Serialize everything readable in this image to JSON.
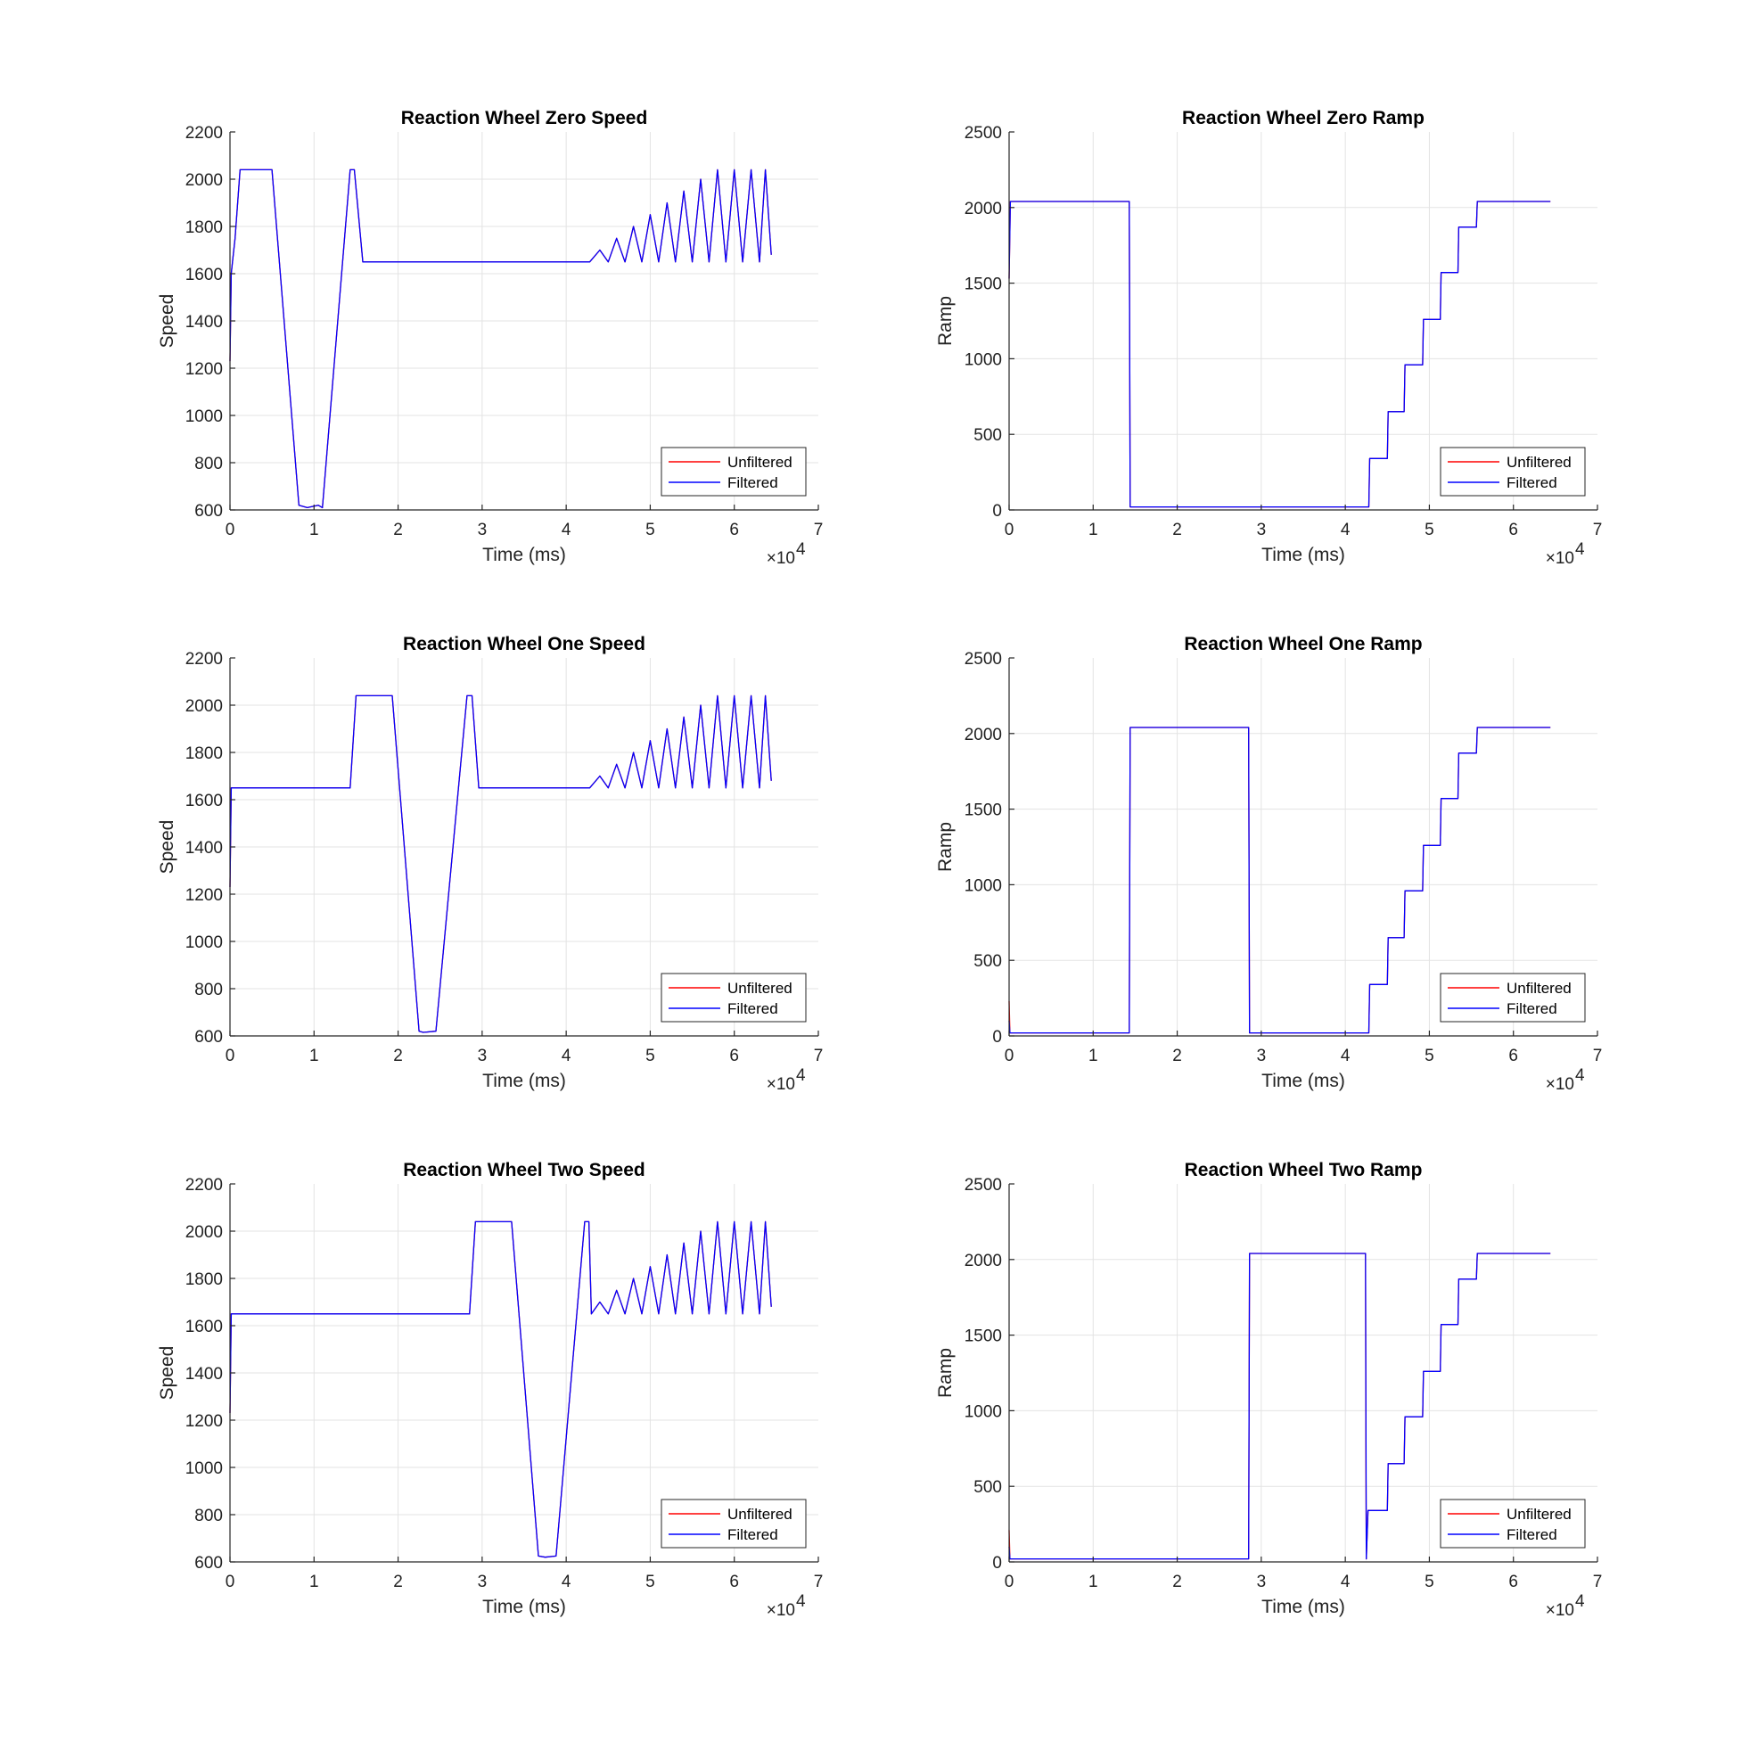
{
  "chart_data": [
    {
      "type": "line",
      "title": "Reaction Wheel Zero Speed",
      "xlabel": "Time (ms)",
      "ylabel": "Speed",
      "xlim": [
        0,
        70000
      ],
      "ylim": [
        600,
        2200
      ],
      "xticks": [
        0,
        10000,
        20000,
        30000,
        40000,
        50000,
        60000,
        70000
      ],
      "xtick_labels": [
        "0",
        "1",
        "2",
        "3",
        "4",
        "5",
        "6",
        "7"
      ],
      "x_exponent_base": "×10",
      "x_exponent_power": "4",
      "yticks": [
        600,
        800,
        1000,
        1200,
        1400,
        1600,
        1800,
        2000,
        2200
      ],
      "ytick_labels": [
        "600",
        "800",
        "1000",
        "1200",
        "1400",
        "1600",
        "1800",
        "2000",
        "2200"
      ],
      "grid": true,
      "legend": "bottom-right",
      "series": [
        {
          "name": "Unfiltered",
          "color": "#ff0000",
          "x": [
            0,
            150,
            300,
            600,
            1200,
            5000,
            8200,
            9200,
            10500,
            11000,
            14300,
            14800,
            15800,
            42800,
            44000,
            45000,
            46000,
            47000,
            48000,
            49000,
            50000,
            51000,
            52000,
            53000,
            54000,
            55000,
            56000,
            57000,
            58000,
            59000,
            60000,
            61000,
            62000,
            63000,
            63700,
            64400
          ],
          "y": [
            1230,
            1600,
            1650,
            1750,
            2040,
            2040,
            620,
            610,
            620,
            610,
            2040,
            2040,
            1650,
            1650,
            1700,
            1650,
            1750,
            1650,
            1800,
            1650,
            1850,
            1650,
            1900,
            1650,
            1950,
            1650,
            2000,
            1650,
            2040,
            1650,
            2040,
            1650,
            2040,
            1650,
            2040,
            1680
          ]
        },
        {
          "name": "Filtered",
          "color": "#0000ff",
          "x": [
            0,
            150,
            300,
            600,
            1200,
            5000,
            8200,
            9200,
            10500,
            11000,
            14300,
            14800,
            15800,
            42800,
            44000,
            45000,
            46000,
            47000,
            48000,
            49000,
            50000,
            51000,
            52000,
            53000,
            54000,
            55000,
            56000,
            57000,
            58000,
            59000,
            60000,
            61000,
            62000,
            63000,
            63700,
            64400
          ],
          "y": [
            1230,
            1600,
            1650,
            1750,
            2040,
            2040,
            620,
            610,
            620,
            610,
            2040,
            2040,
            1650,
            1650,
            1700,
            1650,
            1750,
            1650,
            1800,
            1650,
            1850,
            1650,
            1900,
            1650,
            1950,
            1650,
            2000,
            1650,
            2040,
            1650,
            2040,
            1650,
            2040,
            1650,
            2040,
            1680
          ]
        }
      ]
    },
    {
      "type": "line",
      "title": "Reaction Wheel Zero Ramp",
      "xlabel": "Time (ms)",
      "ylabel": "Ramp",
      "xlim": [
        0,
        70000
      ],
      "ylim": [
        0,
        2500
      ],
      "xticks": [
        0,
        10000,
        20000,
        30000,
        40000,
        50000,
        60000,
        70000
      ],
      "xtick_labels": [
        "0",
        "1",
        "2",
        "3",
        "4",
        "5",
        "6",
        "7"
      ],
      "x_exponent_base": "×10",
      "x_exponent_power": "4",
      "yticks": [
        0,
        500,
        1000,
        1500,
        2000,
        2500
      ],
      "ytick_labels": [
        "0",
        "500",
        "1000",
        "1500",
        "2000",
        "2500"
      ],
      "grid": true,
      "legend": "bottom-right",
      "series": [
        {
          "name": "Unfiltered",
          "color": "#ff0000",
          "x": [
            0,
            150,
            300,
            14300,
            14400,
            42800,
            42900,
            45000,
            45100,
            47000,
            47100,
            49200,
            49300,
            51300,
            51400,
            53400,
            53500,
            55600,
            55700,
            64400
          ],
          "y": [
            1530,
            2040,
            2040,
            2040,
            20,
            20,
            340,
            340,
            650,
            650,
            960,
            960,
            1260,
            1260,
            1570,
            1570,
            1870,
            1870,
            2040,
            2040
          ]
        },
        {
          "name": "Filtered",
          "color": "#0000ff",
          "x": [
            0,
            150,
            300,
            14300,
            14400,
            42800,
            42900,
            45000,
            45100,
            47000,
            47100,
            49200,
            49300,
            51300,
            51400,
            53400,
            53500,
            55600,
            55700,
            64400
          ],
          "y": [
            1530,
            2040,
            2040,
            2040,
            20,
            20,
            340,
            340,
            650,
            650,
            960,
            960,
            1260,
            1260,
            1570,
            1570,
            1870,
            1870,
            2040,
            2040
          ]
        }
      ]
    },
    {
      "type": "line",
      "title": "Reaction Wheel One Speed",
      "xlabel": "Time (ms)",
      "ylabel": "Speed",
      "xlim": [
        0,
        70000
      ],
      "ylim": [
        600,
        2200
      ],
      "xticks": [
        0,
        10000,
        20000,
        30000,
        40000,
        50000,
        60000,
        70000
      ],
      "xtick_labels": [
        "0",
        "1",
        "2",
        "3",
        "4",
        "5",
        "6",
        "7"
      ],
      "x_exponent_base": "×10",
      "x_exponent_power": "4",
      "yticks": [
        600,
        800,
        1000,
        1200,
        1400,
        1600,
        1800,
        2000,
        2200
      ],
      "ytick_labels": [
        "600",
        "800",
        "1000",
        "1200",
        "1400",
        "1600",
        "1800",
        "2000",
        "2200"
      ],
      "grid": true,
      "legend": "bottom-right",
      "series": [
        {
          "name": "Unfiltered",
          "color": "#ff0000",
          "x": [
            0,
            150,
            300,
            14300,
            15000,
            19300,
            22500,
            23000,
            24500,
            28200,
            28800,
            29600,
            42800,
            44000,
            45000,
            46000,
            47000,
            48000,
            49000,
            50000,
            51000,
            52000,
            53000,
            54000,
            55000,
            56000,
            57000,
            58000,
            59000,
            60000,
            61000,
            62000,
            63000,
            63700,
            64400
          ],
          "y": [
            1230,
            1650,
            1650,
            1650,
            2040,
            2040,
            620,
            615,
            620,
            2040,
            2040,
            1650,
            1650,
            1700,
            1650,
            1750,
            1650,
            1800,
            1650,
            1850,
            1650,
            1900,
            1650,
            1950,
            1650,
            2000,
            1650,
            2040,
            1650,
            2040,
            1650,
            2040,
            1650,
            2040,
            1680
          ]
        },
        {
          "name": "Filtered",
          "color": "#0000ff",
          "x": [
            0,
            150,
            300,
            14300,
            15000,
            19300,
            22500,
            23000,
            24500,
            28200,
            28800,
            29600,
            42800,
            44000,
            45000,
            46000,
            47000,
            48000,
            49000,
            50000,
            51000,
            52000,
            53000,
            54000,
            55000,
            56000,
            57000,
            58000,
            59000,
            60000,
            61000,
            62000,
            63000,
            63700,
            64400
          ],
          "y": [
            1230,
            1650,
            1650,
            1650,
            2040,
            2040,
            620,
            615,
            620,
            2040,
            2040,
            1650,
            1650,
            1700,
            1650,
            1750,
            1650,
            1800,
            1650,
            1850,
            1650,
            1900,
            1650,
            1950,
            1650,
            2000,
            1650,
            2040,
            1650,
            2040,
            1650,
            2040,
            1650,
            2040,
            1680
          ]
        }
      ]
    },
    {
      "type": "line",
      "title": "Reaction Wheel One Ramp",
      "xlabel": "Time (ms)",
      "ylabel": "Ramp",
      "xlim": [
        0,
        70000
      ],
      "ylim": [
        0,
        2500
      ],
      "xticks": [
        0,
        10000,
        20000,
        30000,
        40000,
        50000,
        60000,
        70000
      ],
      "xtick_labels": [
        "0",
        "1",
        "2",
        "3",
        "4",
        "5",
        "6",
        "7"
      ],
      "x_exponent_base": "×10",
      "x_exponent_power": "4",
      "yticks": [
        0,
        500,
        1000,
        1500,
        2000,
        2500
      ],
      "ytick_labels": [
        "0",
        "500",
        "1000",
        "1500",
        "2000",
        "2500"
      ],
      "grid": true,
      "legend": "bottom-right",
      "series": [
        {
          "name": "Unfiltered",
          "color": "#ff0000",
          "x": [
            0,
            100,
            200,
            14300,
            14400,
            28500,
            28600,
            42800,
            42900,
            45000,
            45100,
            47000,
            47100,
            49200,
            49300,
            51300,
            51400,
            53400,
            53500,
            55600,
            55700,
            64400
          ],
          "y": [
            230,
            20,
            20,
            20,
            2040,
            2040,
            20,
            20,
            340,
            340,
            650,
            650,
            960,
            960,
            1260,
            1260,
            1570,
            1570,
            1870,
            1870,
            2040,
            2040
          ]
        },
        {
          "name": "Filtered",
          "color": "#0000ff",
          "x": [
            0,
            100,
            200,
            14300,
            14400,
            28500,
            28600,
            42800,
            42900,
            45000,
            45100,
            47000,
            47100,
            49200,
            49300,
            51300,
            51400,
            53400,
            53500,
            55600,
            55700,
            64400
          ],
          "y": [
            100,
            20,
            20,
            20,
            2040,
            2040,
            20,
            20,
            340,
            340,
            650,
            650,
            960,
            960,
            1260,
            1260,
            1570,
            1570,
            1870,
            1870,
            2040,
            2040
          ]
        }
      ]
    },
    {
      "type": "line",
      "title": "Reaction Wheel Two Speed",
      "xlabel": "Time (ms)",
      "ylabel": "Speed",
      "xlim": [
        0,
        70000
      ],
      "ylim": [
        600,
        2200
      ],
      "xticks": [
        0,
        10000,
        20000,
        30000,
        40000,
        50000,
        60000,
        70000
      ],
      "xtick_labels": [
        "0",
        "1",
        "2",
        "3",
        "4",
        "5",
        "6",
        "7"
      ],
      "x_exponent_base": "×10",
      "x_exponent_power": "4",
      "yticks": [
        600,
        800,
        1000,
        1200,
        1400,
        1600,
        1800,
        2000,
        2200
      ],
      "ytick_labels": [
        "600",
        "800",
        "1000",
        "1200",
        "1400",
        "1600",
        "1800",
        "2000",
        "2200"
      ],
      "grid": true,
      "legend": "bottom-right",
      "series": [
        {
          "name": "Unfiltered",
          "color": "#ff0000",
          "x": [
            0,
            150,
            300,
            28500,
            29200,
            33500,
            36700,
            37500,
            38800,
            42200,
            42700,
            43000,
            44000,
            45000,
            46000,
            47000,
            48000,
            49000,
            50000,
            51000,
            52000,
            53000,
            54000,
            55000,
            56000,
            57000,
            58000,
            59000,
            60000,
            61000,
            62000,
            63000,
            63700,
            64400
          ],
          "y": [
            1230,
            1650,
            1650,
            1650,
            2040,
            2040,
            625,
            620,
            625,
            2040,
            2040,
            1650,
            1700,
            1650,
            1750,
            1650,
            1800,
            1650,
            1850,
            1650,
            1900,
            1650,
            1950,
            1650,
            2000,
            1650,
            2040,
            1650,
            2040,
            1650,
            2040,
            1650,
            2040,
            1680
          ]
        },
        {
          "name": "Filtered",
          "color": "#0000ff",
          "x": [
            0,
            150,
            300,
            28500,
            29200,
            33500,
            36700,
            37500,
            38800,
            42200,
            42700,
            43000,
            44000,
            45000,
            46000,
            47000,
            48000,
            49000,
            50000,
            51000,
            52000,
            53000,
            54000,
            55000,
            56000,
            57000,
            58000,
            59000,
            60000,
            61000,
            62000,
            63000,
            63700,
            64400
          ],
          "y": [
            1230,
            1650,
            1650,
            1650,
            2040,
            2040,
            625,
            620,
            625,
            2040,
            2040,
            1650,
            1700,
            1650,
            1750,
            1650,
            1800,
            1650,
            1850,
            1650,
            1900,
            1650,
            1950,
            1650,
            2000,
            1650,
            2040,
            1650,
            2040,
            1650,
            2040,
            1650,
            2040,
            1680
          ]
        }
      ]
    },
    {
      "type": "line",
      "title": "Reaction Wheel Two Ramp",
      "xlabel": "Time (ms)",
      "ylabel": "Ramp",
      "xlim": [
        0,
        70000
      ],
      "ylim": [
        0,
        2500
      ],
      "xticks": [
        0,
        10000,
        20000,
        30000,
        40000,
        50000,
        60000,
        70000
      ],
      "xtick_labels": [
        "0",
        "1",
        "2",
        "3",
        "4",
        "5",
        "6",
        "7"
      ],
      "x_exponent_base": "×10",
      "x_exponent_power": "4",
      "yticks": [
        0,
        500,
        1000,
        1500,
        2000,
        2500
      ],
      "ytick_labels": [
        "0",
        "500",
        "1000",
        "1500",
        "2000",
        "2500"
      ],
      "grid": true,
      "legend": "bottom-right",
      "series": [
        {
          "name": "Unfiltered",
          "color": "#ff0000",
          "x": [
            0,
            100,
            200,
            28500,
            28600,
            42400,
            42450,
            42500,
            42700,
            45000,
            45100,
            47000,
            47100,
            49200,
            49300,
            51300,
            51400,
            53400,
            53500,
            55600,
            55700,
            64400
          ],
          "y": [
            210,
            20,
            20,
            20,
            2040,
            2040,
            800,
            20,
            340,
            340,
            650,
            650,
            960,
            960,
            1260,
            1260,
            1570,
            1570,
            1870,
            1870,
            2040,
            2040
          ]
        },
        {
          "name": "Filtered",
          "color": "#0000ff",
          "x": [
            0,
            100,
            200,
            28500,
            28600,
            42400,
            42500,
            42700,
            45000,
            45100,
            47000,
            47100,
            49200,
            49300,
            51300,
            51400,
            53400,
            53500,
            55600,
            55700,
            64400
          ],
          "y": [
            100,
            20,
            20,
            20,
            2040,
            2040,
            20,
            340,
            340,
            650,
            650,
            960,
            960,
            1260,
            1260,
            1570,
            1570,
            1870,
            1870,
            2040,
            2040
          ]
        }
      ]
    }
  ]
}
